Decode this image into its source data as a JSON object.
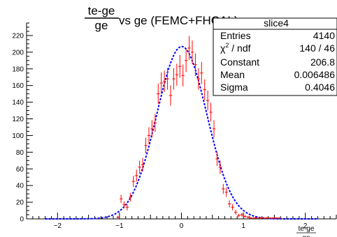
{
  "chart_data": {
    "type": "scatter",
    "title": {
      "num": "te-ge",
      "den": "ge",
      "rest": " vs ge (FEMC+FHCAL)"
    },
    "xlabel": {
      "num": "te-ge",
      "den": "ge"
    },
    "ylabel": "",
    "xlim": [
      -2.5,
      2.5
    ],
    "ylim": [
      0,
      235
    ],
    "x_ticks": [
      -2,
      -1,
      0,
      1,
      2
    ],
    "y_ticks": [
      0,
      20,
      40,
      60,
      80,
      100,
      120,
      140,
      160,
      180,
      200,
      220
    ],
    "grid": false,
    "legend": "top-right",
    "colors": {
      "data": "#ff0000",
      "fit": "#0000ff",
      "axes": "#000000"
    },
    "bin_width": 0.05,
    "series": [
      {
        "kind": "histogram-error-bars",
        "points": [
          {
            "x": -1.025,
            "y": 2
          },
          {
            "x": -0.975,
            "y": 24
          },
          {
            "x": -0.925,
            "y": 17
          },
          {
            "x": -0.875,
            "y": 14
          },
          {
            "x": -0.825,
            "y": 26
          },
          {
            "x": -0.775,
            "y": 45
          },
          {
            "x": -0.725,
            "y": 52
          },
          {
            "x": -0.675,
            "y": 62
          },
          {
            "x": -0.625,
            "y": 65
          },
          {
            "x": -0.575,
            "y": 88
          },
          {
            "x": -0.525,
            "y": 100
          },
          {
            "x": -0.475,
            "y": 108
          },
          {
            "x": -0.425,
            "y": 115
          },
          {
            "x": -0.375,
            "y": 150
          },
          {
            "x": -0.325,
            "y": 163
          },
          {
            "x": -0.275,
            "y": 165
          },
          {
            "x": -0.225,
            "y": 168
          },
          {
            "x": -0.175,
            "y": 148
          },
          {
            "x": -0.125,
            "y": 168
          },
          {
            "x": -0.075,
            "y": 173
          },
          {
            "x": -0.025,
            "y": 183
          },
          {
            "x": 0.025,
            "y": 172
          },
          {
            "x": 0.075,
            "y": 190
          },
          {
            "x": 0.125,
            "y": 205
          },
          {
            "x": 0.175,
            "y": 200
          },
          {
            "x": 0.225,
            "y": 185
          },
          {
            "x": 0.275,
            "y": 168
          },
          {
            "x": 0.325,
            "y": 175
          },
          {
            "x": 0.375,
            "y": 155
          },
          {
            "x": 0.425,
            "y": 142
          },
          {
            "x": 0.475,
            "y": 128
          },
          {
            "x": 0.525,
            "y": 108
          },
          {
            "x": 0.575,
            "y": 72
          },
          {
            "x": 0.625,
            "y": 62
          },
          {
            "x": 0.675,
            "y": 36
          },
          {
            "x": 0.725,
            "y": 32
          },
          {
            "x": 0.775,
            "y": 18
          },
          {
            "x": 0.825,
            "y": 14
          },
          {
            "x": 0.875,
            "y": 8
          },
          {
            "x": 0.925,
            "y": 4
          },
          {
            "x": 0.975,
            "y": 5
          },
          {
            "x": 1.025,
            "y": 3
          },
          {
            "x": 1.075,
            "y": 2
          },
          {
            "x": 1.125,
            "y": 1
          },
          {
            "x": 1.175,
            "y": 1
          },
          {
            "x": 1.225,
            "y": 1
          },
          {
            "x": 1.275,
            "y": 1
          },
          {
            "x": 1.325,
            "y": 1
          },
          {
            "x": 1.375,
            "y": 1
          },
          {
            "x": 1.425,
            "y": 1
          },
          {
            "x": 1.475,
            "y": 1
          },
          {
            "x": 1.525,
            "y": 1
          },
          {
            "x": 1.575,
            "y": 1
          }
        ]
      },
      {
        "kind": "gaussian-fit",
        "constant": 206.8,
        "mean": 0.006486,
        "sigma": 0.4046
      }
    ],
    "stats_box": {
      "name": "slice4",
      "rows": [
        {
          "label": "Entries",
          "value": "4140"
        },
        {
          "label": "χ",
          "sup": "2",
          "label_rest": " / ndf",
          "value": "140 / 46"
        },
        {
          "label": "Constant",
          "value": "206.8"
        },
        {
          "label": "Mean",
          "value": "0.006486"
        },
        {
          "label": "Sigma",
          "value": "0.4046"
        }
      ]
    }
  }
}
